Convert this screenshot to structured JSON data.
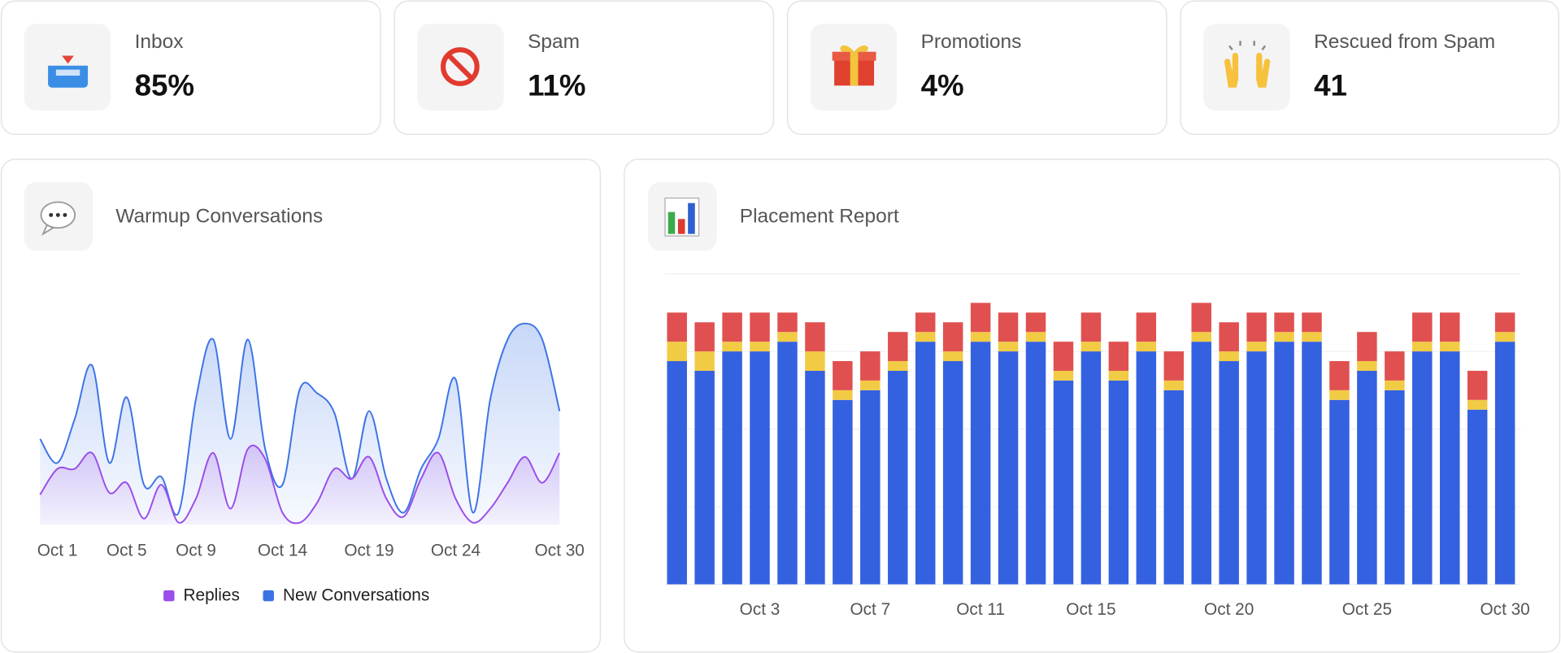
{
  "cards": [
    {
      "label": "Inbox",
      "value": "85%"
    },
    {
      "label": "Spam",
      "value": "11%"
    },
    {
      "label": "Promotions",
      "value": "4%"
    },
    {
      "label": "Rescued from Spam",
      "value": "41"
    }
  ],
  "chart_data": [
    {
      "type": "line",
      "title": "Warmup Conversations",
      "categories": [
        null,
        "Oct 1",
        null,
        null,
        null,
        "Oct 5",
        null,
        null,
        null,
        "Oct 9",
        null,
        null,
        null,
        null,
        "Oct 14",
        null,
        null,
        null,
        null,
        "Oct 19",
        null,
        null,
        null,
        null,
        "Oct 24",
        null,
        null,
        null,
        null,
        null,
        "Oct 30"
      ],
      "series": [
        {
          "name": "Replies",
          "color": "#9b4dea",
          "values": [
            15,
            28,
            28,
            36,
            16,
            21,
            3,
            20,
            1,
            13,
            36,
            8,
            38,
            33,
            6,
            1,
            11,
            28,
            23,
            34,
            13,
            4,
            23,
            36,
            13,
            1,
            8,
            21,
            34,
            21,
            36
          ]
        },
        {
          "name": "New Conversations",
          "color": "#3b73e6",
          "values": [
            43,
            31,
            53,
            80,
            31,
            64,
            20,
            24,
            6,
            63,
            93,
            43,
            93,
            38,
            20,
            68,
            66,
            56,
            23,
            57,
            23,
            6,
            28,
            43,
            73,
            6,
            63,
            93,
            101,
            93,
            57
          ]
        }
      ],
      "ylim": [
        0,
        120
      ],
      "legend": "bottom"
    },
    {
      "type": "bar",
      "title": "Placement Report",
      "stacked": true,
      "categories": [
        null,
        null,
        null,
        "Oct 3",
        null,
        null,
        null,
        "Oct 7",
        null,
        null,
        null,
        "Oct 11",
        null,
        null,
        null,
        "Oct 15",
        null,
        null,
        null,
        null,
        "Oct 20",
        null,
        null,
        null,
        null,
        "Oct 25",
        null,
        null,
        null,
        null,
        "Oct 30"
      ],
      "series": [
        {
          "color": "#3461e0",
          "values": [
            23,
            22,
            24,
            24,
            25,
            22,
            19,
            20,
            22,
            25,
            23,
            25,
            24,
            25,
            21,
            24,
            21,
            24,
            20,
            25,
            23,
            24,
            25,
            25,
            19,
            22,
            20,
            24,
            24,
            18,
            25
          ]
        },
        {
          "color": "#f2cb45",
          "values": [
            2,
            2,
            1,
            1,
            1,
            2,
            1,
            1,
            1,
            1,
            1,
            1,
            1,
            1,
            1,
            1,
            1,
            1,
            1,
            1,
            1,
            1,
            1,
            1,
            1,
            1,
            1,
            1,
            1,
            1,
            1
          ]
        },
        {
          "color": "#e05050",
          "values": [
            3,
            3,
            3,
            3,
            2,
            3,
            3,
            3,
            3,
            2,
            3,
            3,
            3,
            2,
            3,
            3,
            3,
            3,
            3,
            3,
            3,
            3,
            2,
            2,
            3,
            3,
            3,
            3,
            3,
            3,
            2
          ]
        }
      ],
      "ylim": [
        0,
        32
      ],
      "yticks": [
        0,
        8,
        16,
        24,
        32
      ],
      "grid": true
    }
  ]
}
